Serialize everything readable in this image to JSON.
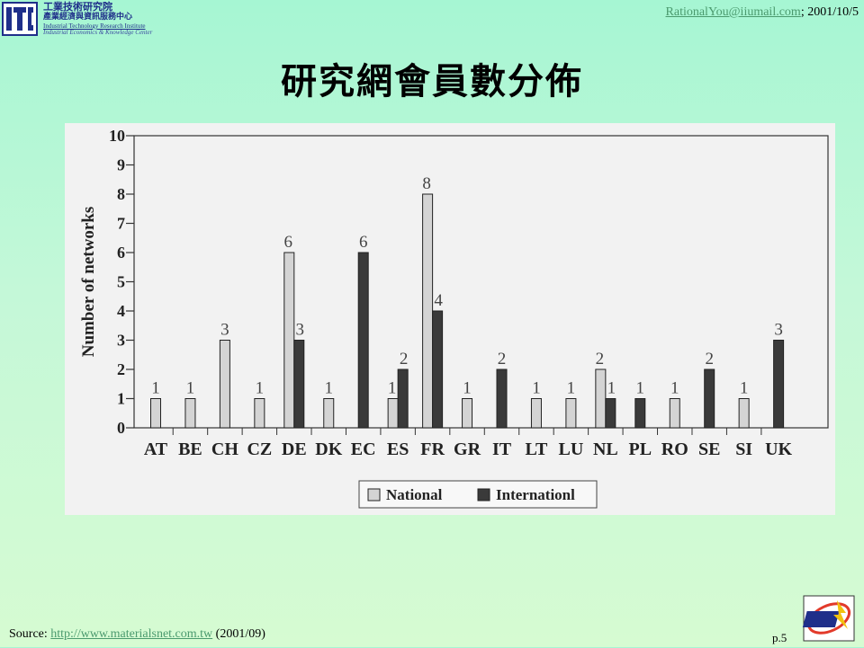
{
  "org": {
    "name_zh": "工業技術研究院",
    "dept_zh": "產業經濟與資訊服務中心",
    "name_en": "Industrial Technology Research Institute",
    "dept_en": "Industrial Economics & Knowledge Center"
  },
  "header": {
    "email": "RationalYou@iiumail.com",
    "date": "; 2001/10/5"
  },
  "slide": {
    "title": "研究網會員數分佈",
    "page": "p.5"
  },
  "footer": {
    "source_label": "Source: ",
    "source_url": "http://www.materialsnet.com.tw",
    "source_date": " (2001/09)"
  },
  "colors": {
    "national": "#d4d4d4",
    "international": "#3a3a3a",
    "link": "#4b9a6e"
  },
  "icons": {
    "logo": "itri-logo-icon",
    "badge": "iek-badge-icon"
  },
  "chart_data": {
    "type": "bar",
    "categories": [
      "AT",
      "BE",
      "CH",
      "CZ",
      "DE",
      "DK",
      "EC",
      "ES",
      "FR",
      "GR",
      "IT",
      "LT",
      "LU",
      "NL",
      "PL",
      "RO",
      "SE",
      "SI",
      "UK"
    ],
    "series": [
      {
        "name": "National",
        "values": [
          1,
          1,
          3,
          1,
          6,
          1,
          null,
          1,
          8,
          1,
          null,
          1,
          1,
          2,
          null,
          1,
          null,
          1,
          null
        ]
      },
      {
        "name": "Internationl",
        "values": [
          null,
          null,
          null,
          null,
          3,
          null,
          6,
          2,
          4,
          null,
          2,
          null,
          null,
          1,
          1,
          null,
          2,
          null,
          3
        ]
      }
    ],
    "ylabel": "Number of networks",
    "xlabel": "",
    "ylim": [
      0,
      10
    ],
    "yticks": [
      "0",
      "1",
      "2",
      "3",
      "4",
      "5",
      "6",
      "7",
      "8",
      "9",
      "10"
    ],
    "data_labels": true,
    "legend": "bottom"
  }
}
